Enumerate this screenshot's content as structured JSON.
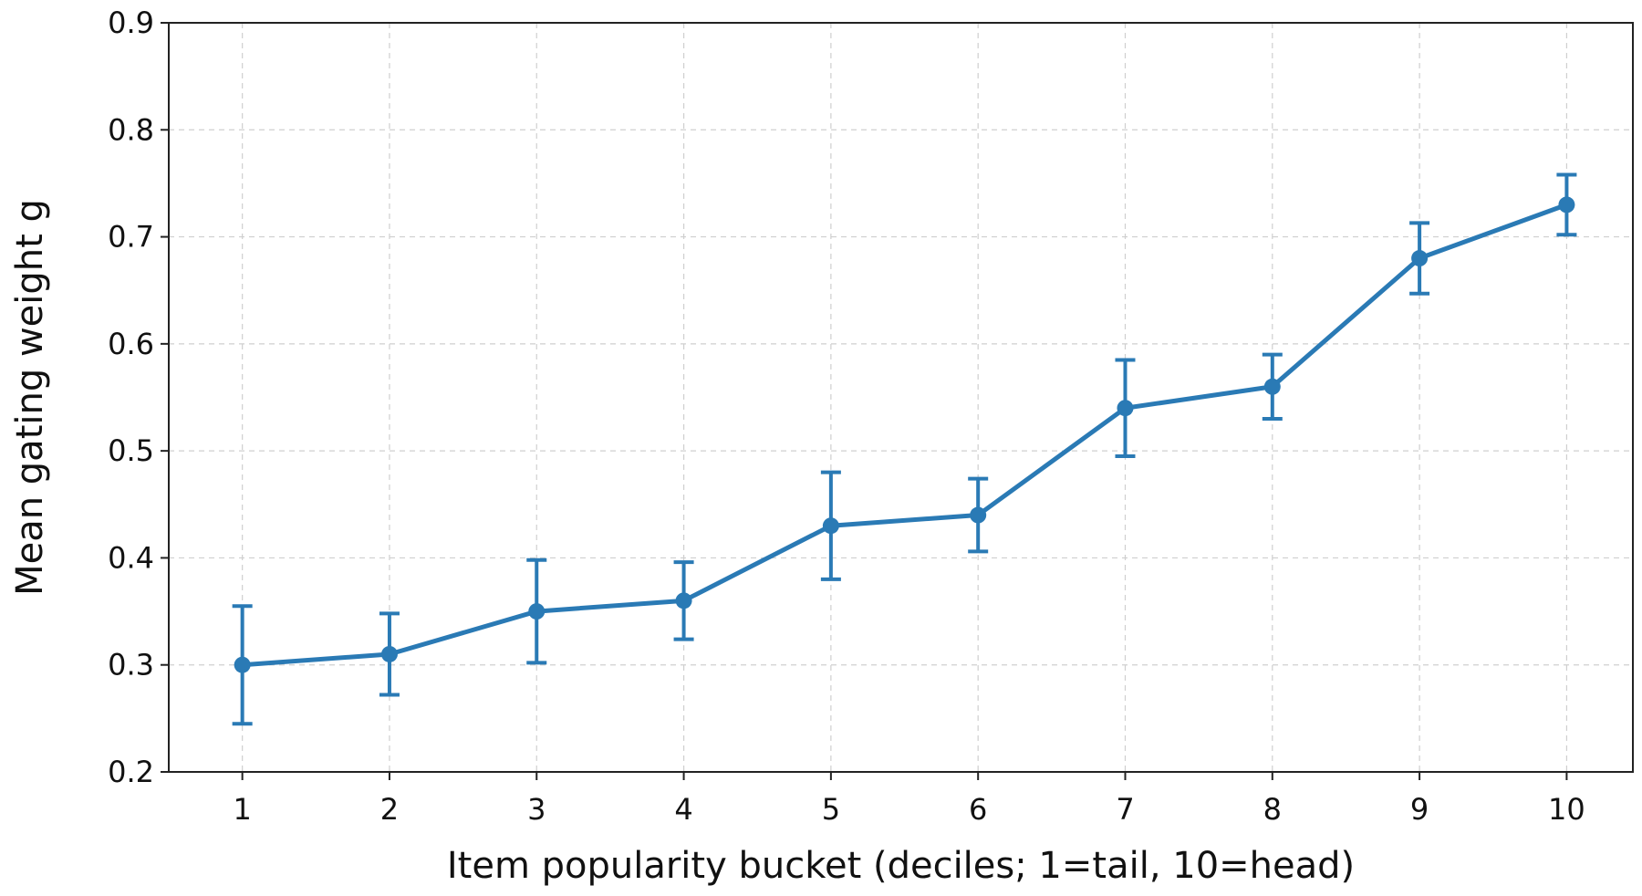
{
  "chart_data": {
    "type": "line",
    "title": "",
    "xlabel": "Item popularity bucket (deciles; 1=tail, 10=head)",
    "ylabel": "Mean gating weight g",
    "x": [
      1,
      2,
      3,
      4,
      5,
      6,
      7,
      8,
      9,
      10
    ],
    "x_ticks": [
      "1",
      "2",
      "3",
      "4",
      "5",
      "6",
      "7",
      "8",
      "9",
      "10"
    ],
    "xlim": [
      0.5,
      10.45
    ],
    "ylim": [
      0.2,
      0.9
    ],
    "y_ticks": [
      "0.2",
      "0.3",
      "0.4",
      "0.5",
      "0.6",
      "0.7",
      "0.8",
      "0.9"
    ],
    "grid": true,
    "series": [
      {
        "values": [
          0.3,
          0.31,
          0.35,
          0.36,
          0.43,
          0.44,
          0.54,
          0.56,
          0.68,
          0.73
        ],
        "error_low": [
          0.245,
          0.272,
          0.302,
          0.324,
          0.38,
          0.406,
          0.495,
          0.53,
          0.647,
          0.702
        ],
        "error_high": [
          0.355,
          0.348,
          0.398,
          0.396,
          0.48,
          0.474,
          0.585,
          0.59,
          0.713,
          0.758
        ],
        "color": "#2a7ab5"
      }
    ]
  }
}
